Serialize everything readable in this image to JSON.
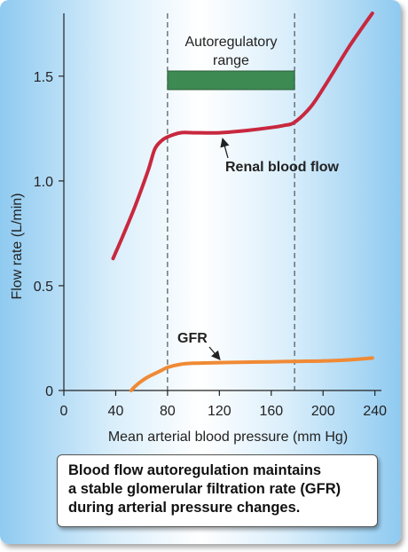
{
  "chart_data": {
    "type": "line",
    "xlabel": "Mean arterial blood pressure (mm Hg)",
    "ylabel": "Flow rate (L/min)",
    "xlim": [
      0,
      245
    ],
    "ylim": [
      0,
      1.8
    ],
    "x_ticks": [
      0,
      40,
      80,
      120,
      160,
      200,
      240
    ],
    "y_ticks": [
      0,
      0.5,
      1.0,
      1.5
    ],
    "y_tick_labels": [
      "0",
      "0.5",
      "1.0",
      "1.5"
    ],
    "series": [
      {
        "name": "Renal blood flow",
        "color": "#c8283f",
        "x": [
          38,
          45,
          55,
          65,
          70,
          75,
          80,
          90,
          100,
          120,
          140,
          160,
          170,
          178,
          190,
          200,
          210,
          220,
          230,
          238
        ],
        "y": [
          0.63,
          0.73,
          0.88,
          1.05,
          1.15,
          1.19,
          1.21,
          1.23,
          1.23,
          1.23,
          1.24,
          1.255,
          1.265,
          1.28,
          1.35,
          1.44,
          1.54,
          1.64,
          1.73,
          1.8
        ]
      },
      {
        "name": "GFR",
        "color": "#f08a35",
        "x": [
          52,
          55,
          60,
          65,
          70,
          75,
          80,
          90,
          100,
          120,
          140,
          160,
          180,
          200,
          220,
          238
        ],
        "y": [
          0.0,
          0.02,
          0.045,
          0.065,
          0.08,
          0.095,
          0.11,
          0.125,
          0.13,
          0.133,
          0.135,
          0.137,
          0.139,
          0.141,
          0.146,
          0.155
        ]
      }
    ],
    "autoregulatory_range": {
      "label_line1": "Autoregulatory",
      "label_line2": "range",
      "x_start": 80,
      "x_end": 178,
      "bar_color": "#3d8a52"
    },
    "annotations": {
      "renal": {
        "text": "Renal blood flow",
        "points_to_x": 120,
        "points_to_y": 1.23
      },
      "gfr": {
        "text": "GFR",
        "points_to_x": 120,
        "points_to_y": 0.133
      }
    }
  },
  "caption": {
    "line1": "Blood flow autoregulation maintains",
    "line2": "a stable glomerular filtration rate (GFR)",
    "line3": "during arterial pressure changes."
  }
}
